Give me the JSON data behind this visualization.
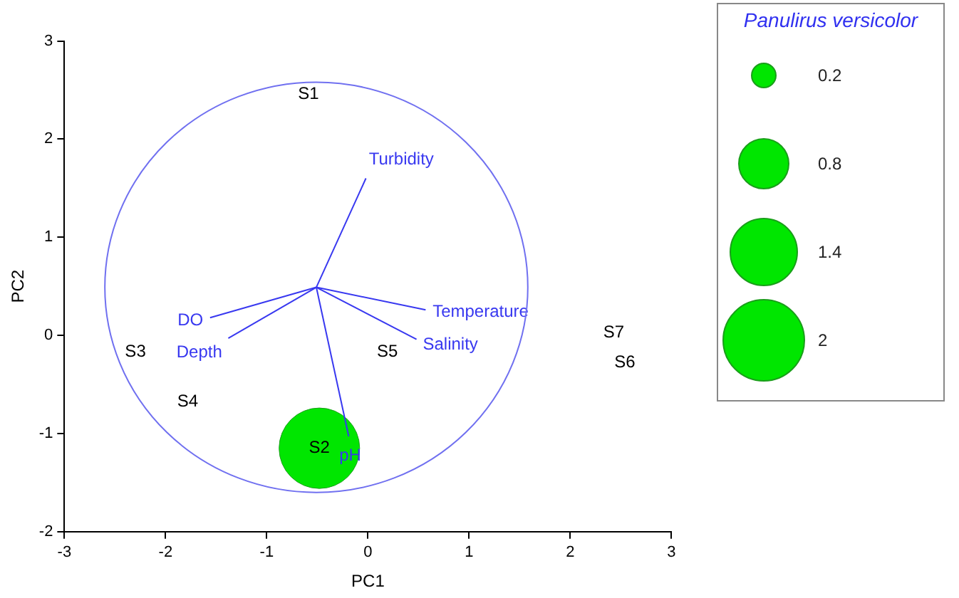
{
  "chart_data": {
    "type": "scatter",
    "xlabel": "PC1",
    "ylabel": "PC2",
    "legend_title": "Panulirus versicolor",
    "legend": "right",
    "size_legend": [
      0.2,
      0.8,
      1.4,
      2
    ],
    "xlim": [
      -3,
      3
    ],
    "xticks": [
      -3,
      -2,
      -1,
      0,
      1,
      2,
      3
    ],
    "ylim": [
      -2,
      3
    ],
    "yticks": [
      -2,
      -1,
      0,
      1,
      2,
      3
    ],
    "grid": false,
    "series": [
      {
        "type": "line",
        "name": "Turbidity",
        "color": "#3838f0",
        "x": [
          -0.51,
          -0.02
        ],
        "values": [
          0.49,
          1.6
        ]
      },
      {
        "type": "line",
        "name": "Temperature",
        "color": "#3838f0",
        "x": [
          -0.51,
          0.57
        ],
        "values": [
          0.49,
          0.26
        ]
      },
      {
        "type": "line",
        "name": "Salinity",
        "color": "#3838f0",
        "x": [
          -0.51,
          0.48
        ],
        "values": [
          0.49,
          -0.04
        ]
      },
      {
        "type": "line",
        "name": "pH",
        "color": "#3838f0",
        "x": [
          -0.51,
          -0.19
        ],
        "values": [
          0.49,
          -1.03
        ]
      },
      {
        "type": "line",
        "name": "DO",
        "color": "#3838f0",
        "x": [
          -0.51,
          -1.56
        ],
        "values": [
          0.49,
          0.18
        ]
      },
      {
        "type": "line",
        "name": "Depth",
        "color": "#3838f0",
        "x": [
          -0.51,
          -1.38
        ],
        "values": [
          0.49,
          -0.03
        ]
      },
      {
        "type": "bubble",
        "color": "#00e600",
        "x": [
          -0.48
        ],
        "values": [
          -1.15
        ],
        "sizes": [
          1.9
        ]
      }
    ],
    "annotations": [
      "S1",
      "S2",
      "S3",
      "S4",
      "S5",
      "S6",
      "S7"
    ]
  }
}
